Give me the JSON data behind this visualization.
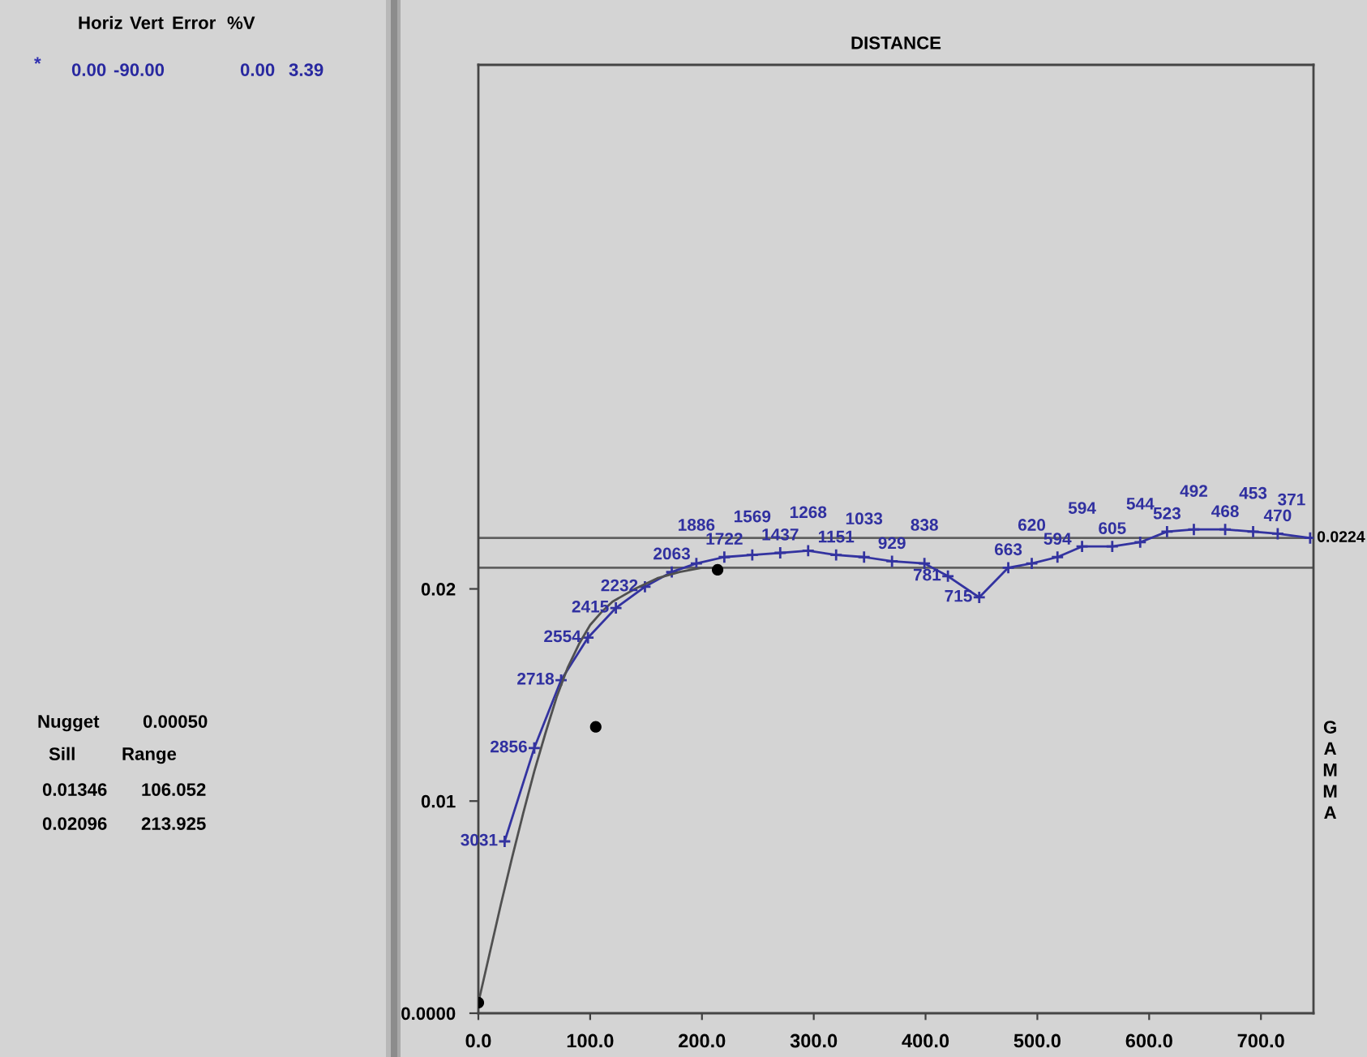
{
  "chart_data": {
    "type": "line",
    "xlabel": "DISTANCE",
    "ylabel": "GAMMA",
    "annotations": [
      "Horiz",
      "Vert",
      "Error",
      "%V",
      "*",
      "0.00",
      "-90.00",
      "0.00",
      "3.39",
      "Nugget",
      "0.00050",
      "Sill",
      "Range",
      "0.01346",
      "106.052",
      "0.02096",
      "213.925",
      {
        "text": "3031",
        "x": 23.5,
        "y": 0.0081
      },
      {
        "text": "2856",
        "x": 50,
        "y": 0.0125
      },
      {
        "text": "2718",
        "x": 74,
        "y": 0.0157
      },
      {
        "text": "2554",
        "x": 98,
        "y": 0.0177
      },
      {
        "text": "2415",
        "x": 123,
        "y": 0.0191
      },
      {
        "text": "2232",
        "x": 149,
        "y": 0.0201
      },
      {
        "text": "2063",
        "x": 173,
        "y": 0.0208
      },
      {
        "text": "1886",
        "x": 195,
        "y": 0.0212
      },
      {
        "text": "1722",
        "x": 220,
        "y": 0.0215
      },
      {
        "text": "1569",
        "x": 245,
        "y": 0.0216
      },
      {
        "text": "1437",
        "x": 270,
        "y": 0.0217
      },
      {
        "text": "1268",
        "x": 295,
        "y": 0.0218
      },
      {
        "text": "1151",
        "x": 320,
        "y": 0.0216
      },
      {
        "text": "1033",
        "x": 345,
        "y": 0.0215
      },
      {
        "text": "929",
        "x": 370,
        "y": 0.0213
      },
      {
        "text": "838",
        "x": 399,
        "y": 0.0212
      },
      {
        "text": "781",
        "x": 420,
        "y": 0.0206
      },
      {
        "text": "715",
        "x": 448,
        "y": 0.0196
      },
      {
        "text": "663",
        "x": 474,
        "y": 0.021
      },
      {
        "text": "620",
        "x": 495,
        "y": 0.0212
      },
      {
        "text": "594",
        "x": 518,
        "y": 0.0215
      },
      {
        "text": "594",
        "x": 540,
        "y": 0.022
      },
      {
        "text": "605",
        "x": 567,
        "y": 0.022
      },
      {
        "text": "544",
        "x": 592,
        "y": 0.0222
      },
      {
        "text": "523",
        "x": 616,
        "y": 0.0227
      },
      {
        "text": "492",
        "x": 640,
        "y": 0.0228
      },
      {
        "text": "468",
        "x": 668,
        "y": 0.0228
      },
      {
        "text": "453",
        "x": 693,
        "y": 0.0227
      },
      {
        "text": "470",
        "x": 715,
        "y": 0.0226
      },
      {
        "text": "371",
        "x": 744,
        "y": 0.0224
      }
    ],
    "xlim": [
      0,
      747
    ],
    "xticks": [
      {
        "value": 0,
        "label": "0.0"
      },
      {
        "value": 100,
        "label": "100.0"
      },
      {
        "value": 200,
        "label": "200.0"
      },
      {
        "value": 300,
        "label": "300.0"
      },
      {
        "value": 400,
        "label": "400.0"
      },
      {
        "value": 500,
        "label": "500.0"
      },
      {
        "value": 600,
        "label": "600.0"
      },
      {
        "value": 700,
        "label": "700.0"
      }
    ],
    "ylim": [
      0,
      0.0447
    ],
    "yticks": [
      {
        "value": 0,
        "label": "0.0000"
      },
      {
        "value": 0.01,
        "label": "0.01"
      },
      {
        "value": 0.02,
        "label": "0.02"
      }
    ],
    "ref_lines": [
      {
        "axis": "y",
        "value": 0.0224,
        "label": "0.0224",
        "color": "#606060"
      },
      {
        "axis": "y",
        "value": 0.021,
        "color": "#606060"
      }
    ],
    "series": [
      {
        "color": "#3333a0",
        "marker": "cross",
        "x": [
          23.5,
          50,
          74,
          98,
          123,
          149,
          173,
          195,
          220,
          245,
          270,
          295,
          320,
          345,
          370,
          399,
          420,
          448,
          474,
          495,
          518,
          540,
          567,
          592,
          616,
          640,
          668,
          693,
          715,
          744
        ],
        "values": [
          0.0081,
          0.0125,
          0.0157,
          0.0177,
          0.0191,
          0.0201,
          0.0208,
          0.0212,
          0.0215,
          0.0216,
          0.0217,
          0.0218,
          0.0216,
          0.0215,
          0.0213,
          0.0212,
          0.0206,
          0.0196,
          0.021,
          0.0212,
          0.0215,
          0.022,
          0.022,
          0.0222,
          0.0227,
          0.0228,
          0.0228,
          0.0227,
          0.0226,
          0.0224
        ]
      },
      {
        "color": "#505050",
        "marker": "none",
        "x": [
          0,
          10,
          20,
          30,
          40,
          50,
          60,
          70,
          80,
          90,
          100,
          110,
          120,
          140,
          160,
          180,
          200,
          214
        ],
        "values": [
          0.0005,
          0.0028,
          0.0051,
          0.0073,
          0.0094,
          0.0114,
          0.0132,
          0.0149,
          0.0163,
          0.0174,
          0.0183,
          0.0189,
          0.0194,
          0.02,
          0.0205,
          0.0208,
          0.021,
          0.021
        ]
      },
      {
        "type": "scatter",
        "color": "#000000",
        "marker": "circle",
        "x": [
          0,
          105,
          214
        ],
        "values": [
          0.0005,
          0.0135,
          0.0209
        ]
      }
    ]
  }
}
